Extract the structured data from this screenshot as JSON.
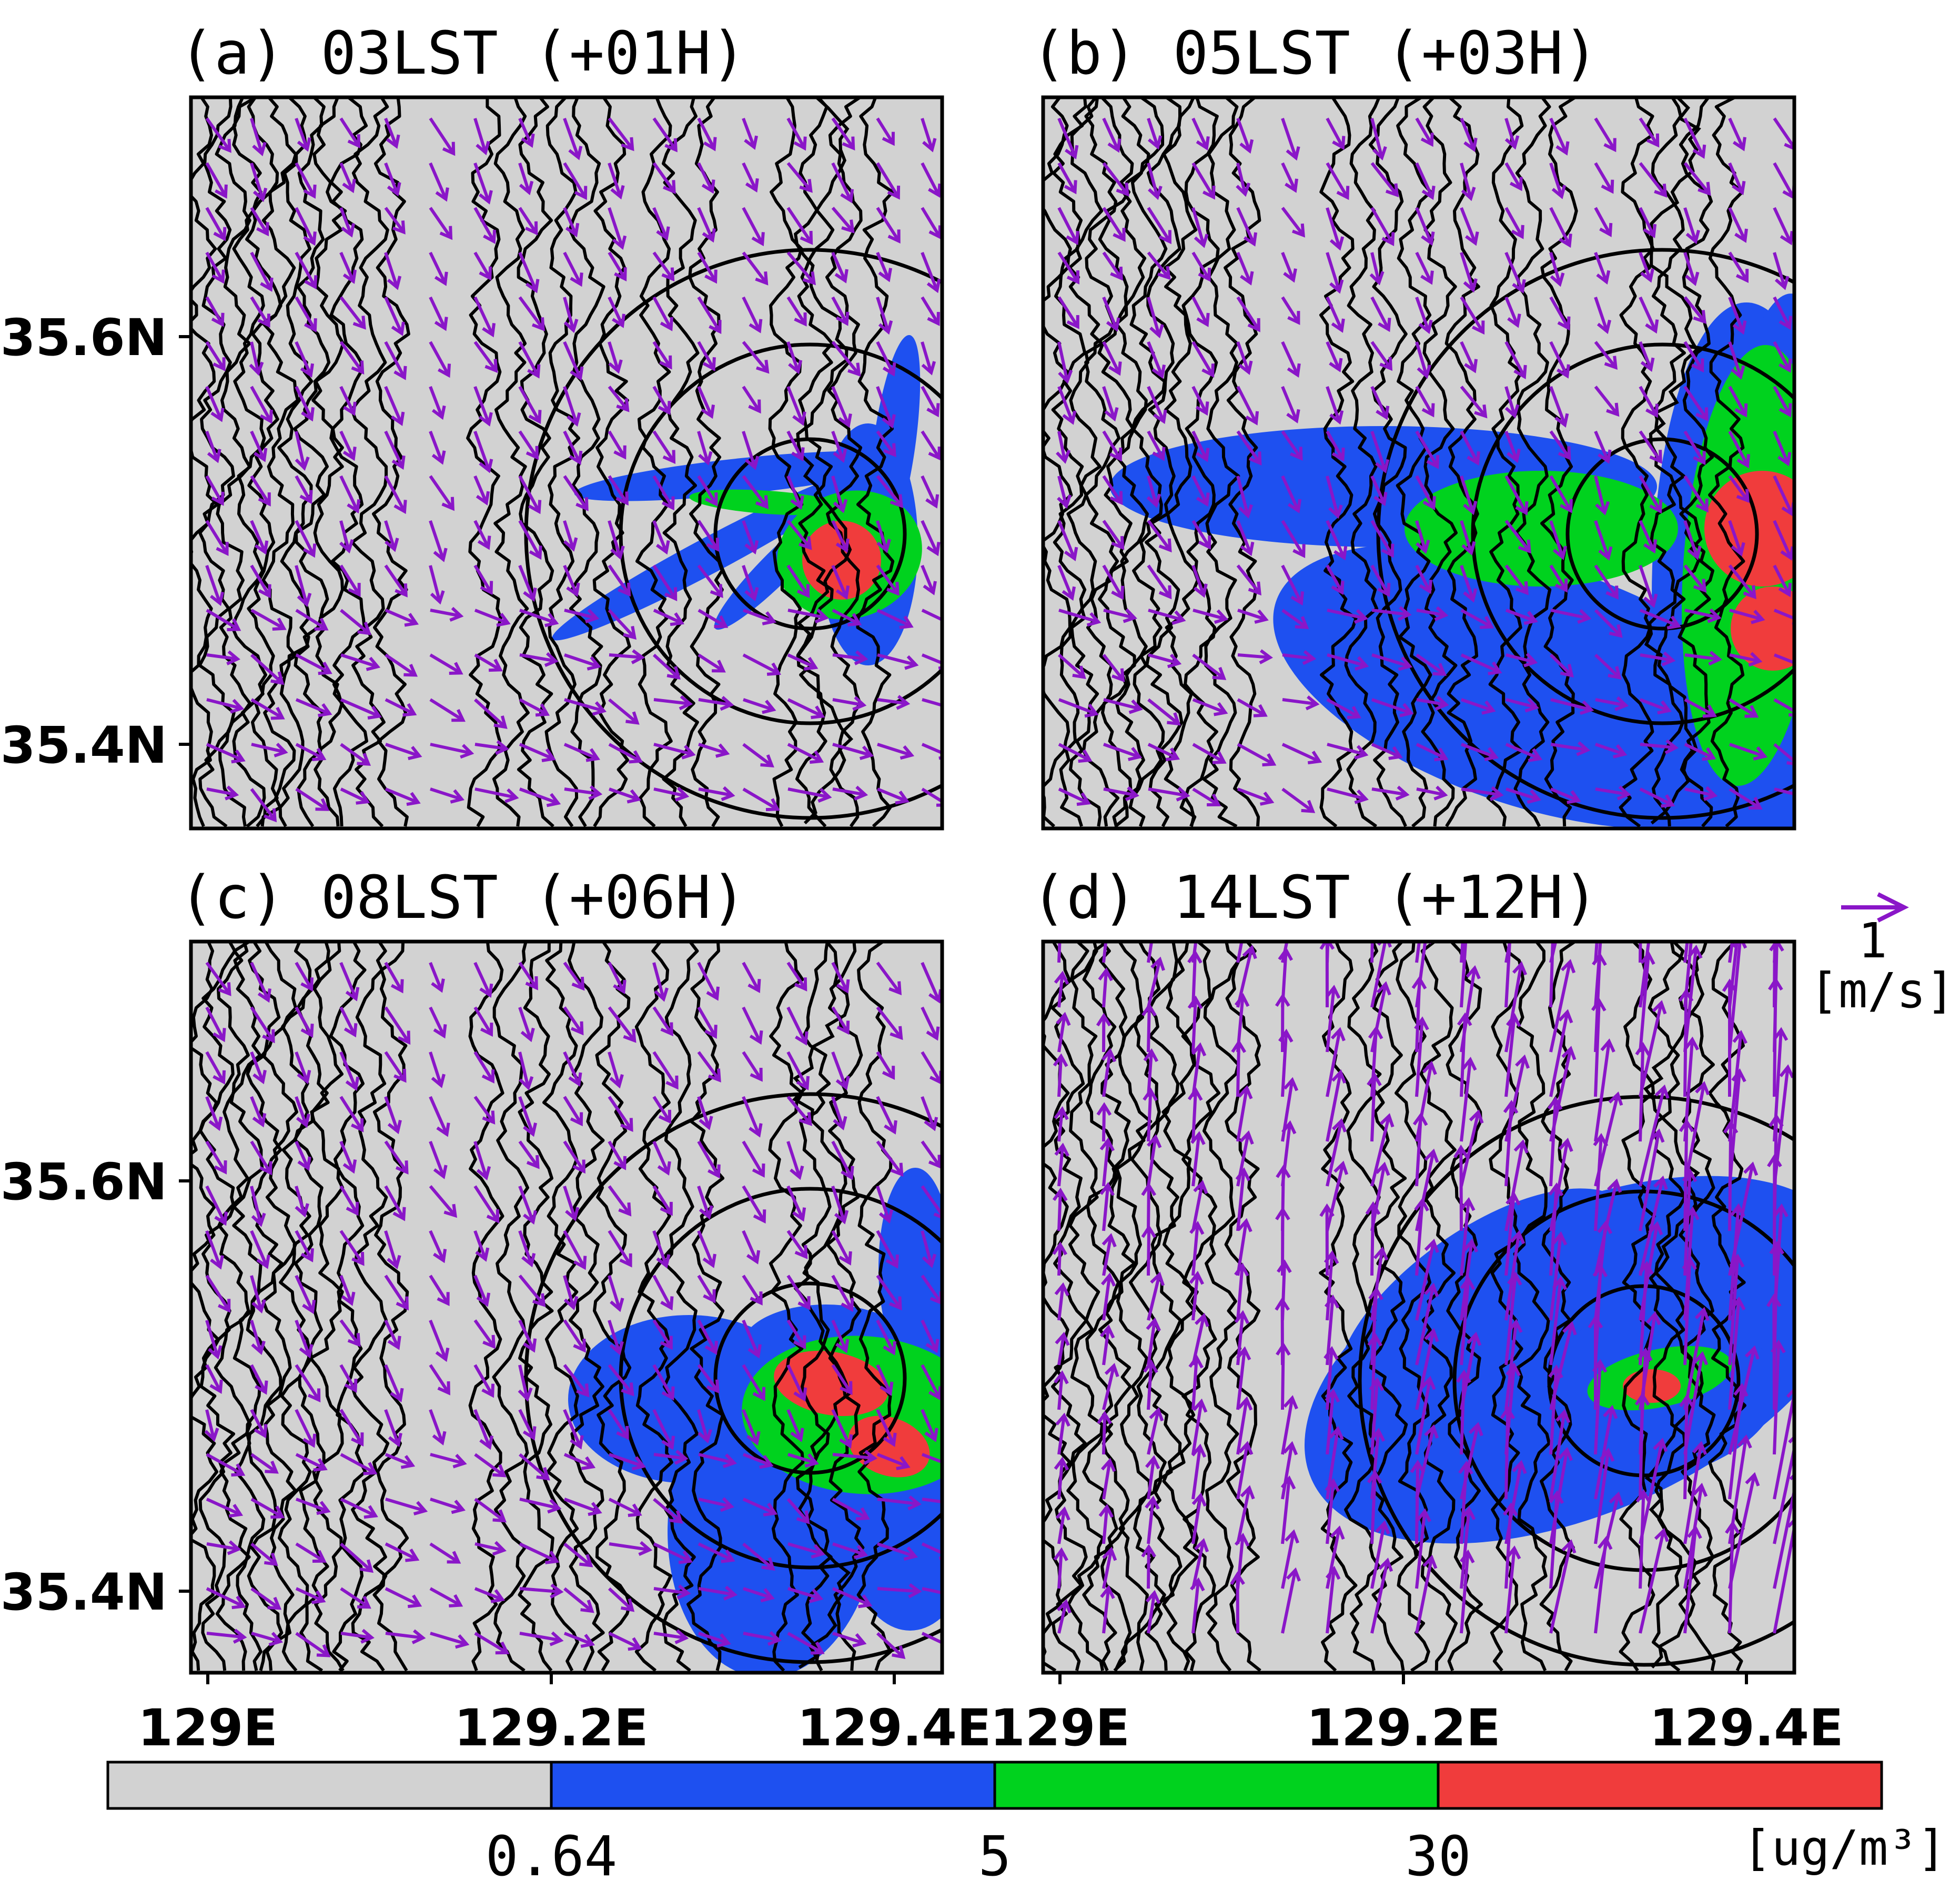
{
  "panels": [
    {
      "id": "a",
      "title": "(a) 03LST (+01H)"
    },
    {
      "id": "b",
      "title": "(b) 05LST (+03H)"
    },
    {
      "id": "c",
      "title": "(c) 08LST (+06H)"
    },
    {
      "id": "d",
      "title": "(d) 14LST (+12H)"
    }
  ],
  "axes": {
    "lat_ticks": [
      "35.6N",
      "35.4N"
    ],
    "lon_ticks": [
      "129E",
      "129.2E",
      "129.4E"
    ]
  },
  "wind_reference": {
    "value": "1",
    "unit": "[m/s]",
    "color": "#8a16c8"
  },
  "colorbar": {
    "boundaries": [
      "0.64",
      "5",
      "30"
    ],
    "unit": "[ug/m³]",
    "colors": [
      "#d2d2d2",
      "#1e50f0",
      "#00d21e",
      "#f03c3c"
    ]
  },
  "colors": {
    "background": "#d2d2d2",
    "contour": "#000000",
    "vector": "#8a16c8"
  }
}
